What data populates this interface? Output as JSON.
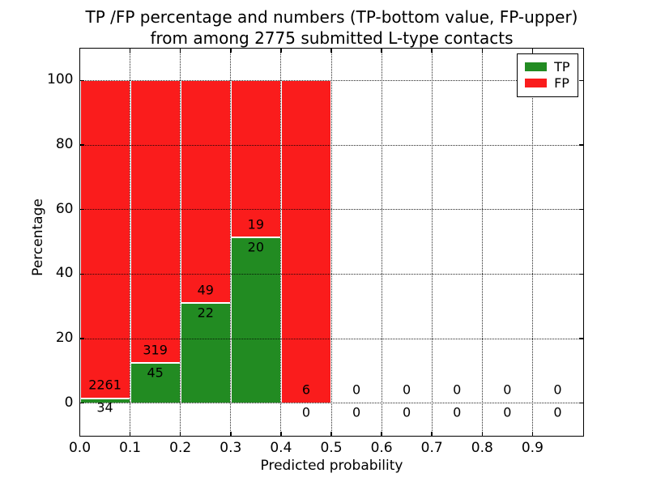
{
  "chart_data": {
    "type": "bar",
    "stacked": true,
    "title": "TP /FP percentage and numbers (TP-bottom value, FP-upper) from among 2775 submitted L-type contacts",
    "title_lines": [
      "TP /FP percentage and numbers (TP-bottom value, FP-upper)",
      "from among 2775 submitted L-type contacts"
    ],
    "total_submitted_contacts": 2775,
    "xlabel": "Predicted probability",
    "ylabel": "Percentage",
    "xlim": [
      0.0,
      1.0
    ],
    "ylim": [
      -10,
      110
    ],
    "grid": "dotted, drawn above bars",
    "legend_position": "upper-right",
    "bin_edges": [
      0.0,
      0.1,
      0.2,
      0.3,
      0.4,
      0.5,
      0.6,
      0.7,
      0.8,
      0.9,
      1.0
    ],
    "xtick_values": [
      0.0,
      0.1,
      0.2,
      0.3,
      0.4,
      0.5,
      0.6,
      0.7,
      0.8,
      0.9
    ],
    "xtick_labels": [
      "0.0",
      "0.1",
      "0.2",
      "0.3",
      "0.4",
      "0.5",
      "0.6",
      "0.7",
      "0.8",
      "0.9"
    ],
    "ytick_values": [
      0,
      20,
      40,
      60,
      80,
      100
    ],
    "ytick_labels": [
      "0",
      "20",
      "40",
      "60",
      "80",
      "100"
    ],
    "series": [
      {
        "name": "TP",
        "color": "#228b22",
        "counts": [
          34,
          45,
          22,
          20,
          0,
          0,
          0,
          0,
          0,
          0
        ]
      },
      {
        "name": "FP",
        "color": "#fa1c1c",
        "counts": [
          2261,
          319,
          49,
          19,
          6,
          0,
          0,
          0,
          0,
          0
        ]
      }
    ],
    "stacked_percent": {
      "TP": [
        1.48,
        12.36,
        30.99,
        51.28,
        0.0,
        null,
        null,
        null,
        null,
        null
      ],
      "FP": [
        98.52,
        87.64,
        69.01,
        48.72,
        100.0,
        null,
        null,
        null,
        null,
        null
      ]
    },
    "bar_edge_color": "#ffffff",
    "axis_color": "#000000"
  }
}
